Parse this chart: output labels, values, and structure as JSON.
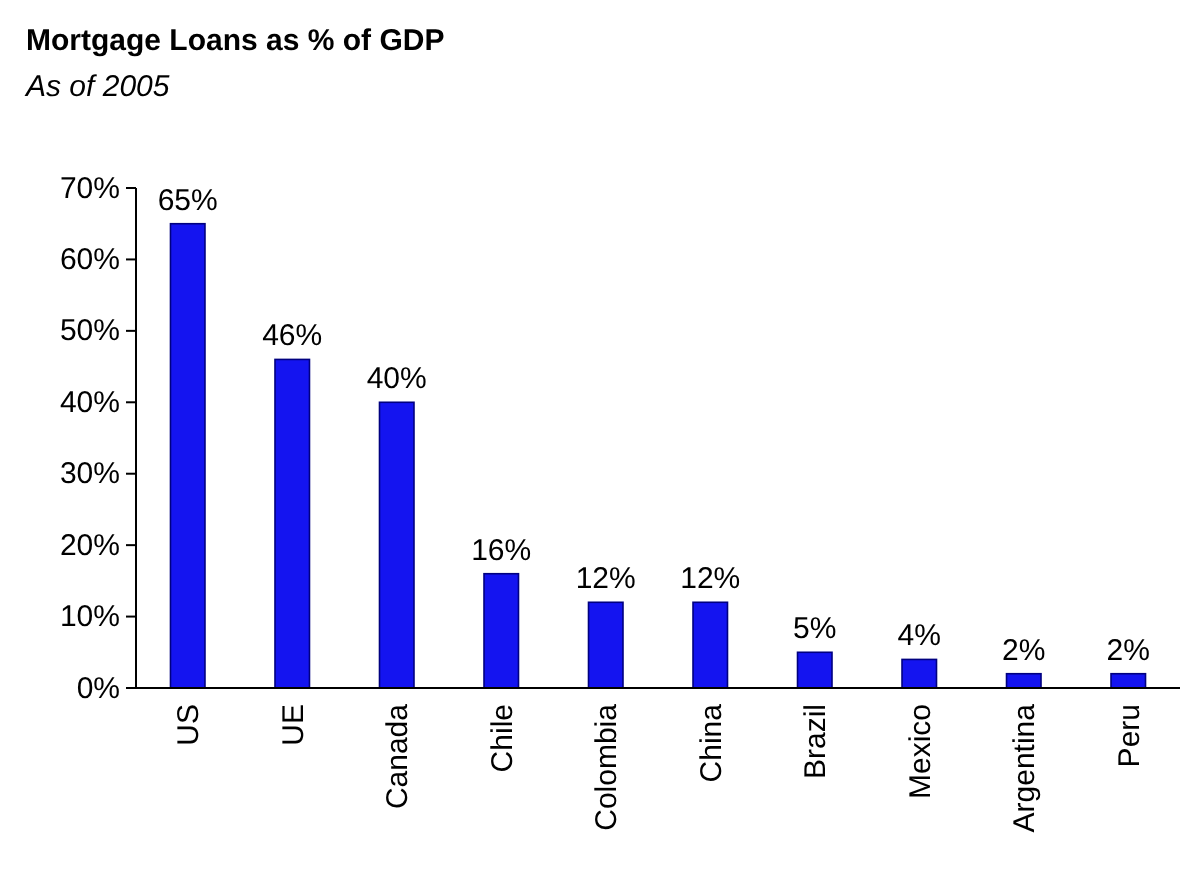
{
  "chart_data": {
    "type": "bar",
    "title": "Mortgage Loans as % of GDP",
    "subtitle": "As of 2005",
    "categories": [
      "US",
      "UE",
      "Canada",
      "Chile",
      "Colombia",
      "China",
      "Brazil",
      "Mexico",
      "Argentina",
      "Peru"
    ],
    "values": [
      65,
      46,
      40,
      16,
      12,
      12,
      5,
      4,
      2,
      2
    ],
    "value_labels": [
      "65%",
      "46%",
      "40%",
      "16%",
      "12%",
      "12%",
      "5%",
      "4%",
      "2%",
      "2%"
    ],
    "color": "#1414f0",
    "ylim": [
      0,
      70
    ],
    "yticks": [
      {
        "value": 0,
        "label": "0%"
      },
      {
        "value": 10,
        "label": "10%"
      },
      {
        "value": 20,
        "label": "20%"
      },
      {
        "value": 30,
        "label": "30%"
      },
      {
        "value": 40,
        "label": "40%"
      },
      {
        "value": 50,
        "label": "50%"
      },
      {
        "value": 60,
        "label": "60%"
      },
      {
        "value": 70,
        "label": "70%"
      }
    ],
    "grid": false
  }
}
